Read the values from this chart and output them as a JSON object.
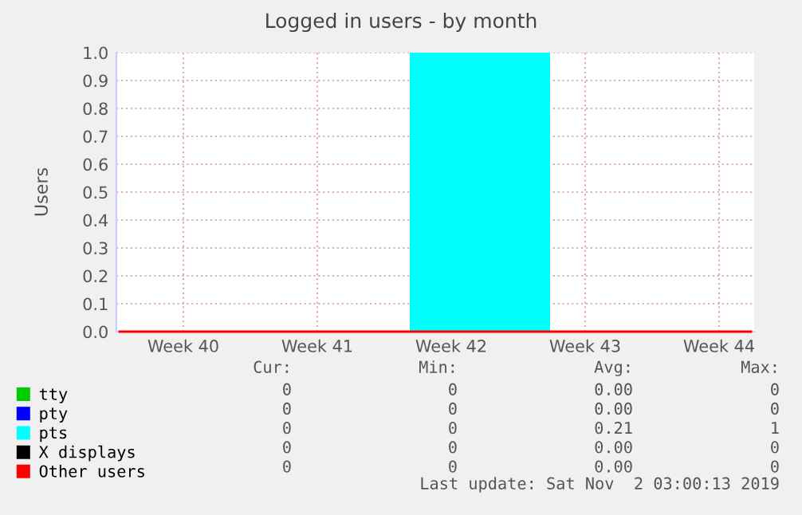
{
  "chart_data": {
    "type": "area",
    "title": "Logged in users - by month",
    "ylabel": "Users",
    "categories": [
      null,
      null,
      null,
      null,
      null,
      null,
      null,
      null,
      null,
      null,
      "Week 40",
      null,
      null,
      null,
      null,
      null,
      null,
      null,
      null,
      null,
      null,
      null,
      null,
      null,
      null,
      null,
      null,
      null,
      null,
      null,
      null,
      "Week 41",
      null,
      null,
      null,
      null,
      null,
      null,
      null,
      null,
      null,
      null,
      null,
      null,
      null,
      null,
      null,
      null,
      null,
      null,
      null,
      null,
      "Week 42",
      null,
      null,
      null,
      null,
      null,
      null,
      null,
      null,
      null,
      null,
      null,
      null,
      null,
      null,
      null,
      null,
      null,
      null,
      null,
      null,
      "Week 43",
      null,
      null,
      null,
      null,
      null,
      null,
      null,
      null,
      null,
      null,
      null,
      null,
      null,
      null,
      null,
      null,
      null,
      null,
      null,
      null,
      "Week 44",
      null,
      null,
      null,
      null,
      null
    ],
    "ylim": [
      0,
      1.0
    ],
    "yticks": [
      {
        "value": 0,
        "label": "0.0"
      },
      {
        "value": 0.1,
        "label": "0.1"
      },
      {
        "value": 0.2,
        "label": "0.2"
      },
      {
        "value": 0.3,
        "label": "0.3"
      },
      {
        "value": 0.4,
        "label": "0.4"
      },
      {
        "value": 0.5,
        "label": "0.5"
      },
      {
        "value": 0.6,
        "label": "0.6"
      },
      {
        "value": 0.7,
        "label": "0.7"
      },
      {
        "value": 0.8,
        "label": "0.8"
      },
      {
        "value": 0.9,
        "label": "0.9"
      },
      {
        "value": 1.0,
        "label": "1.0"
      }
    ],
    "grid": true,
    "legend": "bottom",
    "series": [
      {
        "name": "tty",
        "type": "line",
        "color": "#00cc00",
        "values": [
          null,
          null,
          null,
          null,
          null,
          null,
          null,
          null,
          null,
          null,
          null,
          null,
          null,
          null,
          null,
          null,
          null,
          null,
          null,
          null,
          null,
          null,
          null,
          null,
          null,
          null,
          null,
          null,
          null,
          null,
          null,
          null,
          null,
          null,
          null,
          null,
          null,
          null,
          null,
          null,
          null,
          null,
          null,
          null,
          null,
          null,
          null,
          null,
          null,
          null,
          null,
          null,
          null,
          null,
          null,
          null,
          null,
          null,
          null,
          null,
          null,
          null,
          null,
          null,
          null,
          null,
          null,
          null,
          null,
          null,
          null,
          null,
          null,
          null,
          null,
          null,
          null,
          null,
          null,
          null,
          null,
          null,
          null,
          null,
          null,
          null,
          null,
          null,
          null,
          null,
          null,
          null,
          null,
          null,
          null,
          null,
          null,
          null,
          null,
          null
        ]
      },
      {
        "name": "pty",
        "type": "line",
        "color": "#0000ff",
        "values": [
          null,
          null,
          null,
          null,
          null,
          null,
          null,
          null,
          null,
          null,
          null,
          null,
          null,
          null,
          null,
          null,
          null,
          null,
          null,
          null,
          null,
          null,
          null,
          null,
          null,
          null,
          null,
          null,
          null,
          null,
          null,
          null,
          null,
          null,
          null,
          null,
          null,
          null,
          null,
          null,
          null,
          null,
          null,
          null,
          null,
          null,
          null,
          null,
          null,
          null,
          null,
          null,
          null,
          null,
          null,
          null,
          null,
          null,
          null,
          null,
          null,
          null,
          null,
          null,
          null,
          null,
          null,
          null,
          null,
          null,
          null,
          null,
          null,
          null,
          null,
          null,
          null,
          null,
          null,
          null,
          null,
          null,
          null,
          null,
          null,
          null,
          null,
          null,
          null,
          null,
          null,
          null,
          null,
          null,
          null,
          null,
          null,
          null,
          null,
          null
        ]
      },
      {
        "name": "pts",
        "color": "#00ffff",
        "values": [
          0,
          0,
          0,
          0,
          0,
          0,
          0,
          0,
          0,
          0,
          0,
          0,
          0,
          0,
          0,
          0,
          0,
          0,
          0,
          0,
          0,
          0,
          0,
          0,
          0,
          0,
          0,
          0,
          0,
          0,
          0,
          0,
          0,
          0,
          0,
          0,
          0,
          0,
          0,
          0,
          0,
          0,
          0,
          0,
          0,
          0,
          1,
          1,
          1,
          1,
          1,
          1,
          1,
          1,
          1,
          1,
          1,
          1,
          1,
          1,
          1,
          1,
          1,
          1,
          1,
          1,
          1,
          1,
          0,
          0,
          0,
          0,
          0,
          0,
          0,
          0,
          0,
          0,
          0,
          0,
          0,
          0,
          0,
          0,
          0,
          0,
          0,
          0,
          0,
          0,
          0,
          0,
          0,
          0,
          0,
          0,
          0,
          0,
          0,
          0
        ]
      },
      {
        "name": "X displays",
        "type": "line",
        "color": "#000000",
        "values": [
          null,
          null,
          null,
          null,
          null,
          null,
          null,
          null,
          null,
          null,
          null,
          null,
          null,
          null,
          null,
          null,
          null,
          null,
          null,
          null,
          null,
          null,
          null,
          null,
          null,
          null,
          null,
          null,
          null,
          null,
          null,
          null,
          null,
          null,
          null,
          null,
          null,
          null,
          null,
          null,
          null,
          null,
          null,
          null,
          null,
          null,
          null,
          null,
          null,
          null,
          null,
          null,
          null,
          null,
          null,
          null,
          null,
          null,
          null,
          null,
          null,
          null,
          null,
          null,
          null,
          null,
          null,
          null,
          null,
          null,
          null,
          null,
          null,
          null,
          null,
          null,
          null,
          null,
          null,
          null,
          null,
          null,
          null,
          null,
          null,
          null,
          null,
          null,
          null,
          null,
          null,
          null,
          null,
          null,
          null,
          null,
          null,
          null,
          null,
          null
        ]
      },
      {
        "name": "Other users",
        "type": "line",
        "color": "#ff0000",
        "values": [
          0,
          0,
          0,
          0,
          0,
          0,
          0,
          0,
          0,
          0,
          0,
          0,
          0,
          0,
          0,
          0,
          0,
          0,
          0,
          0,
          0,
          0,
          0,
          0,
          0,
          0,
          0,
          0,
          0,
          0,
          0,
          0,
          0,
          0,
          0,
          0,
          0,
          0,
          0,
          0,
          0,
          0,
          0,
          0,
          0,
          0,
          0,
          0,
          0,
          0,
          0,
          0,
          0,
          0,
          0,
          0,
          0,
          0,
          0,
          0,
          0,
          0,
          0,
          0,
          0,
          0,
          0,
          0,
          0,
          0,
          0,
          0,
          0,
          0,
          0,
          0,
          0,
          0,
          0,
          0,
          0,
          0,
          0,
          0,
          0,
          0,
          0,
          0,
          0,
          0,
          0,
          0,
          0,
          0,
          0,
          0,
          0,
          0,
          0,
          0
        ]
      }
    ],
    "annotations": [
      "Cur:",
      "Min:",
      "Avg:",
      "Max:",
      "0",
      "0",
      "0.00",
      "0",
      "0",
      "0",
      "0.00",
      "0",
      "0",
      "0",
      "0.21",
      "1",
      "0",
      "0",
      "0.00",
      "0",
      "0",
      "0",
      "0.00",
      "0",
      "Last update: Sat Nov  2 03:00:13 2019"
    ]
  }
}
